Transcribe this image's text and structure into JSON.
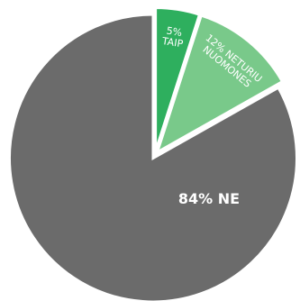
{
  "chart_data": {
    "type": "pie",
    "slices": [
      {
        "value": 5,
        "lines": [
          "5%",
          "TAIP"
        ],
        "color": "#2eaf5e"
      },
      {
        "value": 12,
        "lines": [
          "12% NETURIU",
          "NUOMONES"
        ],
        "color": "#79c98a"
      },
      {
        "value": 84,
        "lines": [
          "84% NE"
        ],
        "color": "#6b6b6b"
      }
    ],
    "start_angle_deg": 0,
    "direction": "clockwise"
  }
}
